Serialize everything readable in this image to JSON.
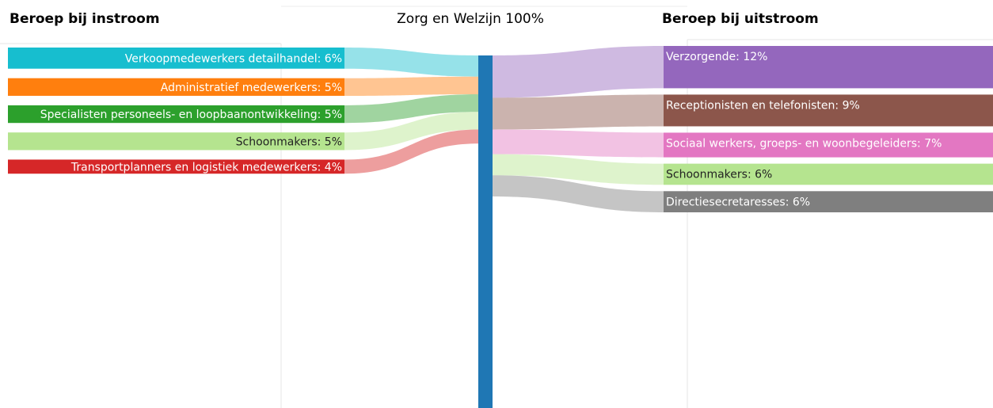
{
  "chart_data": {
    "type": "sankey",
    "left_title": "Beroep bij instroom",
    "right_title": "Beroep bij uitstroom",
    "center": {
      "label": "Zorg en Welzijn 100%",
      "value": 100,
      "color": "#1f77b4"
    },
    "sources": {
      "labels": [
        "Verkoopmedewerkers detailhandel: 6%",
        "Administratief medewerkers: 5%",
        "Specialisten personeels- en loopbaanontwikkeling: 5%",
        "Schoonmakers: 5%",
        "Transportplanners en logistiek medewerkers: 4%"
      ],
      "values": [
        6,
        5,
        5,
        5,
        4
      ],
      "colors": [
        "#17becf",
        "#ff7f0e",
        "#2ca02c",
        "#b5e48f",
        "#d62728"
      ]
    },
    "targets": {
      "labels": [
        "Verzorgende: 12%",
        "Receptionisten en telefonisten: 9%",
        "Sociaal werkers, groeps- en woonbegeleiders: 7%",
        "Schoonmakers: 6%",
        "Directiesecretaresses: 6%"
      ],
      "values": [
        12,
        9,
        7,
        6,
        6
      ],
      "colors": [
        "#9467bd",
        "#8c564b",
        "#e377c2",
        "#b5e48f",
        "#7f7f7f"
      ]
    }
  }
}
